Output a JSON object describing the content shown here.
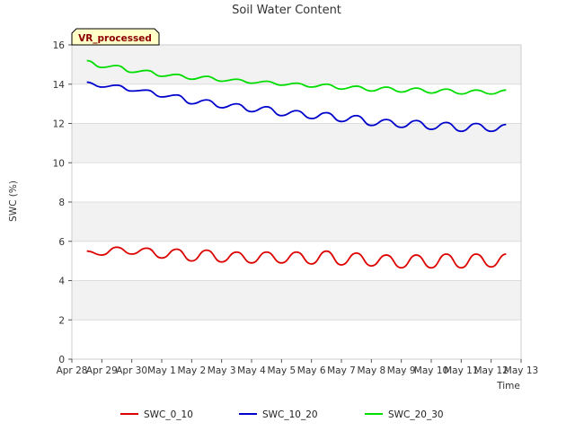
{
  "chart_data": {
    "type": "line",
    "title": "Soil Water Content",
    "xlabel": "Time",
    "ylabel": "SWC (%)",
    "badge": "VR_processed",
    "x_ticks": [
      "Apr 28",
      "Apr 29",
      "Apr 30",
      "May 1",
      "May 2",
      "May 3",
      "May 4",
      "May 5",
      "May 6",
      "May 7",
      "May 8",
      "May 9",
      "May 10",
      "May 11",
      "May 12",
      "May 13"
    ],
    "y_ticks": [
      "0",
      "2",
      "4",
      "6",
      "8",
      "10",
      "12",
      "14",
      "16"
    ],
    "ylim": [
      0,
      16
    ],
    "x_range": [
      "Apr 28",
      "May 13"
    ],
    "grid": "horizontal bands",
    "legend_position": "bottom-center",
    "x": [
      "Apr 28 12:00",
      "Apr 29",
      "Apr 29 12:00",
      "Apr 30",
      "Apr 30 12:00",
      "May 1",
      "May 1 12:00",
      "May 2",
      "May 2 12:00",
      "May 3",
      "May 3 12:00",
      "May 4",
      "May 4 12:00",
      "May 5",
      "May 5 12:00",
      "May 6",
      "May 6 12:00",
      "May 7",
      "May 7 12:00",
      "May 8",
      "May 8 12:00",
      "May 9",
      "May 9 12:00",
      "May 10",
      "May 10 12:00",
      "May 11",
      "May 11 12:00",
      "May 12",
      "May 12 12:00"
    ],
    "series": [
      {
        "name": "SWC_0_10",
        "color": "#dd0000",
        "values": [
          5.5,
          5.3,
          5.7,
          5.35,
          5.65,
          5.15,
          5.6,
          5.0,
          5.55,
          4.95,
          5.45,
          4.9,
          5.45,
          4.9,
          5.45,
          4.85,
          5.5,
          4.8,
          5.4,
          4.75,
          5.3,
          4.65,
          5.3,
          4.65,
          5.35,
          4.65,
          5.35,
          4.7,
          5.35
        ]
      },
      {
        "name": "SWC_10_20",
        "color": "#0000cc",
        "values": [
          14.1,
          13.85,
          13.95,
          13.65,
          13.7,
          13.35,
          13.45,
          13.0,
          13.2,
          12.8,
          13.0,
          12.6,
          12.85,
          12.4,
          12.65,
          12.25,
          12.55,
          12.1,
          12.4,
          11.9,
          12.2,
          11.8,
          12.15,
          11.7,
          12.05,
          11.6,
          12.0,
          11.6,
          11.95
        ]
      },
      {
        "name": "SWC_20_30",
        "color": "#00dd00",
        "values": [
          15.2,
          14.85,
          14.95,
          14.6,
          14.7,
          14.4,
          14.5,
          14.25,
          14.4,
          14.15,
          14.25,
          14.05,
          14.15,
          13.95,
          14.05,
          13.85,
          14.0,
          13.75,
          13.9,
          13.65,
          13.85,
          13.6,
          13.8,
          13.55,
          13.75,
          13.5,
          13.7,
          13.5,
          13.7
        ]
      }
    ]
  }
}
